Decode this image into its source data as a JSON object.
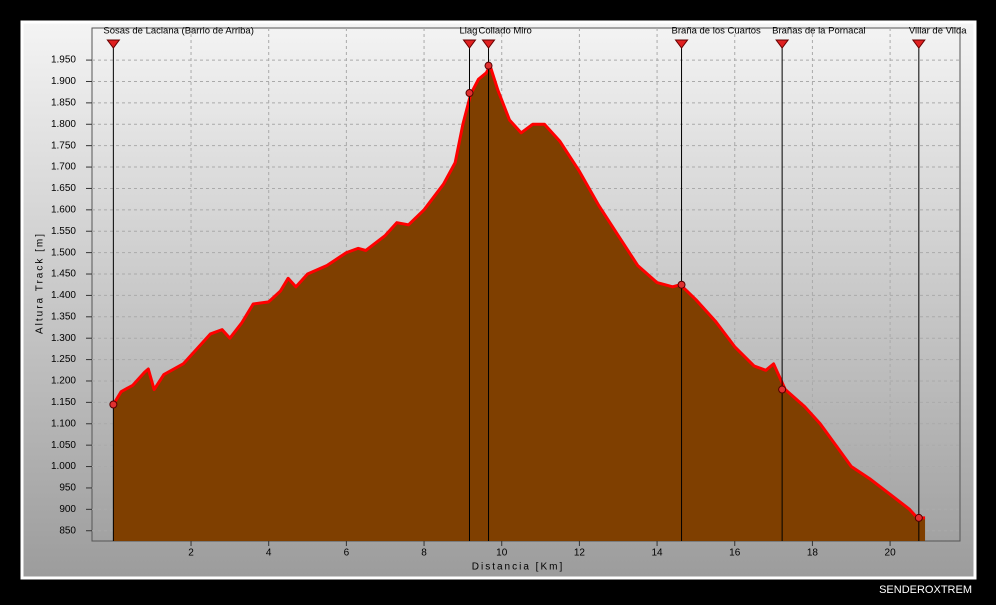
{
  "chart_data": {
    "type": "area",
    "xlabel": "Distancia [Km]",
    "ylabel": "Altura Track [m]",
    "x": [
      0,
      0.2,
      0.5,
      0.8,
      0.9,
      1.05,
      1.3,
      1.8,
      2.2,
      2.5,
      2.8,
      3.0,
      3.3,
      3.6,
      4.0,
      4.3,
      4.5,
      4.7,
      5.0,
      5.5,
      6.0,
      6.3,
      6.5,
      7.0,
      7.3,
      7.6,
      8.0,
      8.5,
      8.8,
      9.0,
      9.2,
      9.4,
      9.6,
      9.7,
      9.9,
      10.2,
      10.5,
      10.8,
      11.1,
      11.5,
      12.0,
      12.5,
      13.0,
      13.5,
      14.0,
      14.4,
      14.6,
      15.0,
      15.5,
      16.0,
      16.5,
      16.8,
      17.0,
      17.3,
      17.8,
      18.2,
      18.6,
      19.0,
      19.5,
      20.0,
      20.5,
      20.7,
      20.9
    ],
    "values": [
      1145,
      1175,
      1190,
      1220,
      1228,
      1180,
      1215,
      1240,
      1280,
      1310,
      1320,
      1300,
      1335,
      1380,
      1385,
      1410,
      1440,
      1420,
      1450,
      1470,
      1500,
      1510,
      1505,
      1540,
      1570,
      1565,
      1600,
      1660,
      1710,
      1800,
      1870,
      1905,
      1920,
      1937,
      1880,
      1810,
      1780,
      1800,
      1800,
      1760,
      1690,
      1610,
      1540,
      1470,
      1430,
      1420,
      1425,
      1390,
      1340,
      1280,
      1235,
      1225,
      1240,
      1180,
      1140,
      1100,
      1050,
      1000,
      970,
      935,
      900,
      880,
      880
    ],
    "color": "#7f3f00",
    "line_color": "#ff0000",
    "xlim": [
      -0.55,
      21.8
    ],
    "xticks": [
      2,
      4,
      6,
      8,
      10,
      12,
      14,
      16,
      18,
      20
    ],
    "ylim": [
      826,
      2025
    ],
    "yticks": [
      850,
      900,
      950,
      {
        "value": 1000,
        "label": "1.000"
      },
      {
        "value": 1050,
        "label": "1.050"
      },
      {
        "value": 1100,
        "label": "1.100"
      },
      {
        "value": 1150,
        "label": "1.150"
      },
      {
        "value": 1200,
        "label": "1.200"
      },
      {
        "value": 1250,
        "label": "1.250"
      },
      {
        "value": 1300,
        "label": "1.300"
      },
      {
        "value": 1350,
        "label": "1.350"
      },
      {
        "value": 1400,
        "label": "1.400"
      },
      {
        "value": 1450,
        "label": "1.450"
      },
      {
        "value": 1500,
        "label": "1.500"
      },
      {
        "value": 1550,
        "label": "1.550"
      },
      {
        "value": 1600,
        "label": "1.600"
      },
      {
        "value": 1650,
        "label": "1.650"
      },
      {
        "value": 1700,
        "label": "1.700"
      },
      {
        "value": 1750,
        "label": "1.750"
      },
      {
        "value": 1800,
        "label": "1.800"
      },
      {
        "value": 1850,
        "label": "1.850"
      },
      {
        "value": 1900,
        "label": "1.900"
      },
      {
        "value": 1950,
        "label": "1.950"
      }
    ],
    "grid": true,
    "waypoints": {
      "names": [
        "Sosas de Laciana (Barrio de Arriba)",
        "Llag",
        "Collado Miro",
        "Braña de los Cuartos",
        "Brañas de la Pornacal",
        "Villar de Vilda"
      ],
      "x": [
        0,
        9.17,
        9.66,
        14.63,
        17.22,
        20.74
      ],
      "y": [
        1145,
        1873,
        1937,
        1425,
        1180,
        880
      ]
    }
  },
  "watermark": "SENDEROXTREM"
}
